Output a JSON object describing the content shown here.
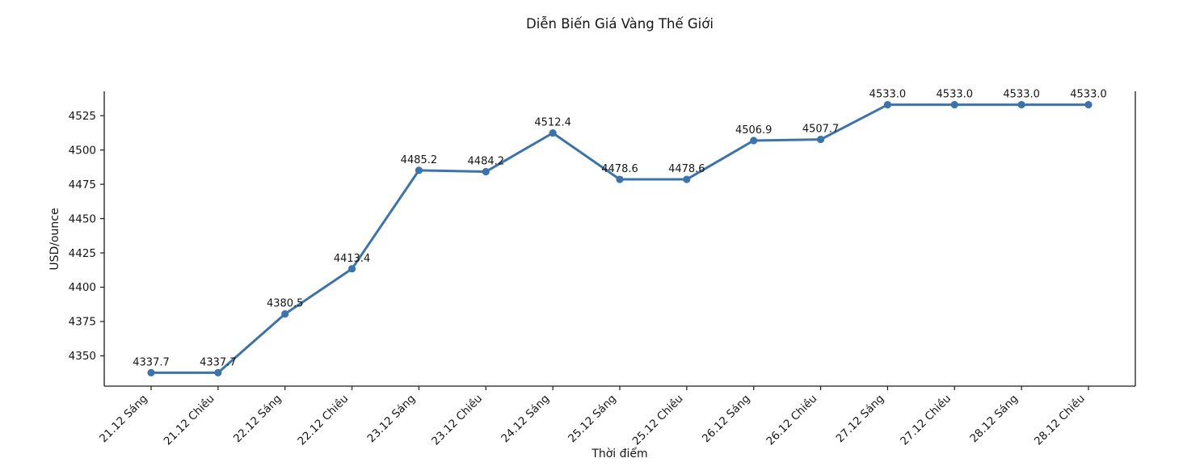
{
  "chart_data": {
    "type": "line",
    "title": "Diễn Biến Giá Vàng Thế Giới",
    "xlabel": "Thời điểm",
    "ylabel": "USD/ounce",
    "categories": [
      "21.12 Sáng",
      "21.12 Chiều",
      "22.12 Sáng",
      "22.12 Chiều",
      "23.12 Sáng",
      "23.12 Chiều",
      "24.12 Sáng",
      "25.12 Sáng",
      "25.12 Chiều",
      "26.12 Sáng",
      "26.12 Chiều",
      "27.12 Sáng",
      "27.12 Chiều",
      "28.12 Sáng",
      "28.12 Chiều"
    ],
    "values": [
      4337.7,
      4337.7,
      4380.5,
      4413.4,
      4485.2,
      4484.2,
      4512.4,
      4478.6,
      4478.6,
      4506.9,
      4507.7,
      4533.0,
      4533.0,
      4533.0,
      4533.0
    ],
    "point_labels": [
      "4337.7",
      "4337.7",
      "4380.5",
      "4413.4",
      "4485.2",
      "4484.2",
      "4512.4",
      "4478.6",
      "4478.6",
      "4506.9",
      "4507.7",
      "4533.0",
      "4533.0",
      "4533.0",
      "4533.0"
    ],
    "yticks": [
      4350,
      4375,
      4400,
      4425,
      4450,
      4475,
      4500,
      4525
    ],
    "ylim": [
      4327.9,
      4542.8
    ],
    "line_color": "#3b74ad",
    "marker": "circle",
    "grid": false,
    "legend": "none",
    "xtick_rotation_deg": 45,
    "spines": [
      "left",
      "right",
      "bottom"
    ]
  }
}
